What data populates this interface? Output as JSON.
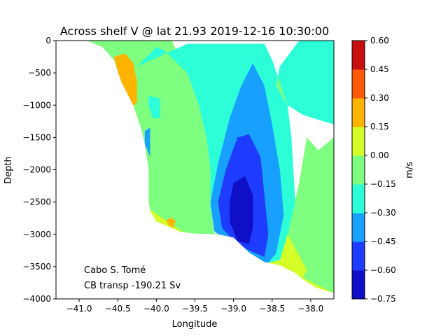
{
  "chart_data": {
    "type": "contourf",
    "title": "Across shelf V @ lat 21.93 2019-12-16 10:30:00",
    "xlabel": "Longitude",
    "ylabel": "Depth",
    "xlim": [
      -41.3,
      -37.7
    ],
    "ylim": [
      -4000,
      0
    ],
    "xticks": [
      -41.0,
      -40.5,
      -40.0,
      -39.5,
      -39.0,
      -38.5,
      -38.0
    ],
    "xtick_labels": [
      "−41.0",
      "−40.5",
      "−40.0",
      "−39.5",
      "−39.0",
      "−38.5",
      "−38.0"
    ],
    "yticks": [
      0,
      -500,
      -1000,
      -1500,
      -2000,
      -2500,
      -3000,
      -3500,
      -4000
    ],
    "ytick_labels": [
      "0",
      "−500",
      "−1000",
      "−1500",
      "−2000",
      "−2500",
      "−3000",
      "−3500",
      "−4000"
    ],
    "colorbar": {
      "label": "m/s",
      "levels": [
        -0.75,
        -0.6,
        -0.45,
        -0.3,
        -0.15,
        0.0,
        0.15,
        0.3,
        0.45,
        0.6
      ],
      "tick_labels": [
        "−0.75",
        "−0.60",
        "−0.45",
        "−0.30",
        "−0.15",
        "0.00",
        "0.15",
        "0.30",
        "0.45",
        "0.60"
      ],
      "colors": [
        "#0f0fc8",
        "#1e3cff",
        "#18a0ff",
        "#2cffd8",
        "#7fff7f",
        "#d4ff28",
        "#ffb400",
        "#ff5a0a",
        "#c80f0f"
      ]
    },
    "annotations": [
      "Cabo S. Tomé",
      "CB transp -190.21 Sv"
    ],
    "regions": [
      {
        "level": "0.00 to 0.15",
        "points": [
          [
            -38.8,
            -3300
          ],
          [
            -38.6,
            -3440
          ],
          [
            -38.4,
            -3500
          ],
          [
            -38.1,
            -3700
          ],
          [
            -37.9,
            -3850
          ],
          [
            -37.7,
            -3910
          ],
          [
            -37.7,
            -1500
          ],
          [
            -37.9,
            -1700
          ],
          [
            -38.05,
            -1500
          ],
          [
            -38.15,
            -2200
          ],
          [
            -38.3,
            -3000
          ],
          [
            -38.5,
            -3300
          ]
        ]
      },
      {
        "level": "0.00 to 0.15",
        "points": [
          [
            -40.1,
            -2200
          ],
          [
            -40.0,
            -1850
          ],
          [
            -39.85,
            -1700
          ],
          [
            -39.7,
            -1900
          ],
          [
            -39.6,
            -2250
          ],
          [
            -39.55,
            -2700
          ],
          [
            -39.45,
            -3000
          ],
          [
            -39.6,
            -3010
          ],
          [
            -39.75,
            -2930
          ],
          [
            -40.0,
            -2800
          ],
          [
            -40.1,
            -2600
          ]
        ]
      },
      {
        "level": "0.00 to 0.15",
        "points": [
          [
            -40.4,
            -200
          ],
          [
            -40.25,
            -300
          ],
          [
            -40.1,
            -500
          ],
          [
            -40.2,
            -700
          ],
          [
            -40.3,
            -600
          ]
        ]
      },
      {
        "level": "-0.15 to 0.00",
        "points": [
          [
            -41.0,
            0
          ],
          [
            -39.8,
            0
          ],
          [
            -39.6,
            -500
          ],
          [
            -39.45,
            -1000
          ],
          [
            -39.35,
            -1500
          ],
          [
            -39.3,
            -2000
          ],
          [
            -39.3,
            -2600
          ],
          [
            -39.25,
            -2980
          ],
          [
            -39.1,
            -3020
          ],
          [
            -38.8,
            -3320
          ],
          [
            -38.45,
            -3460
          ],
          [
            -38.1,
            -3680
          ],
          [
            -38.05,
            -3550
          ],
          [
            -38.3,
            -3000
          ],
          [
            -38.15,
            -2200
          ],
          [
            -38.05,
            -1500
          ],
          [
            -37.9,
            -1700
          ],
          [
            -37.7,
            -1500
          ],
          [
            -37.7,
            -1300
          ],
          [
            -38.1,
            -1150
          ],
          [
            -38.3,
            -1000
          ],
          [
            -38.45,
            -700
          ],
          [
            -38.4,
            -400
          ],
          [
            -38.15,
            0
          ],
          [
            -37.7,
            0
          ],
          [
            -37.7,
            -3910
          ],
          [
            -38.9,
            -3200
          ],
          [
            -39.6,
            -3010
          ],
          [
            -40.1,
            -2600
          ],
          [
            -40.2,
            -1800
          ],
          [
            -40.3,
            -1300
          ],
          [
            -40.6,
            -300
          ],
          [
            -40.85,
            -80
          ]
        ]
      },
      {
        "level": "-0.30 to -0.15",
        "points": [
          [
            -40.25,
            -400
          ],
          [
            -40.0,
            -100
          ],
          [
            -39.9,
            -150
          ],
          [
            -39.6,
            -500
          ],
          [
            -39.45,
            -1000
          ],
          [
            -39.35,
            -1500
          ],
          [
            -39.3,
            -2000
          ],
          [
            -39.3,
            -2600
          ],
          [
            -39.25,
            -2950
          ],
          [
            -39.1,
            -3020
          ],
          [
            -38.8,
            -3320
          ],
          [
            -38.55,
            -3440
          ],
          [
            -38.4,
            -3400
          ],
          [
            -38.3,
            -3000
          ],
          [
            -38.2,
            -2500
          ],
          [
            -38.25,
            -1500
          ],
          [
            -38.3,
            -1000
          ],
          [
            -38.45,
            -700
          ],
          [
            -38.4,
            -400
          ],
          [
            -38.15,
            0
          ],
          [
            -37.7,
            0
          ],
          [
            -37.7,
            -1300
          ],
          [
            -38.1,
            -1150
          ],
          [
            -38.3,
            -1000
          ],
          [
            -38.5,
            -300
          ],
          [
            -38.6,
            -50
          ],
          [
            -39.6,
            -50
          ]
        ]
      },
      {
        "level": "-0.45 to -0.30",
        "points": [
          [
            -39.2,
            -1900
          ],
          [
            -39.05,
            -1200
          ],
          [
            -38.9,
            -700
          ],
          [
            -38.75,
            -350
          ],
          [
            -38.6,
            -700
          ],
          [
            -38.5,
            -1300
          ],
          [
            -38.4,
            -2000
          ],
          [
            -38.35,
            -2700
          ],
          [
            -38.45,
            -3300
          ],
          [
            -38.55,
            -3440
          ],
          [
            -38.75,
            -3420
          ],
          [
            -38.95,
            -3300
          ],
          [
            -39.1,
            -3100
          ],
          [
            -39.25,
            -2950
          ],
          [
            -39.3,
            -2500
          ]
        ]
      },
      {
        "level": "-0.60 to -0.45",
        "points": [
          [
            -39.1,
            -2000
          ],
          [
            -38.95,
            -1500
          ],
          [
            -38.8,
            -1450
          ],
          [
            -38.65,
            -1800
          ],
          [
            -38.6,
            -2400
          ],
          [
            -38.55,
            -3000
          ],
          [
            -38.6,
            -3350
          ],
          [
            -38.8,
            -3250
          ],
          [
            -39.0,
            -3100
          ],
          [
            -39.15,
            -2900
          ],
          [
            -39.2,
            -2500
          ]
        ]
      },
      {
        "level": "-0.75 to -0.60",
        "points": [
          [
            -39.0,
            -2200
          ],
          [
            -38.85,
            -2100
          ],
          [
            -38.75,
            -2400
          ],
          [
            -38.75,
            -2900
          ],
          [
            -38.8,
            -3150
          ],
          [
            -38.95,
            -3100
          ],
          [
            -39.05,
            -2800
          ],
          [
            -39.05,
            -2500
          ]
        ]
      },
      {
        "level": "-0.30 to -0.15",
        "points": [
          [
            -40.1,
            -850
          ],
          [
            -39.95,
            -900
          ],
          [
            -39.95,
            -1200
          ],
          [
            -40.05,
            -1200
          ],
          [
            -40.1,
            -1000
          ]
        ]
      },
      {
        "level": "-0.45 to -0.30",
        "points": [
          [
            -40.15,
            -1400
          ],
          [
            -40.08,
            -1350
          ],
          [
            -40.08,
            -1800
          ],
          [
            -40.15,
            -1600
          ]
        ]
      },
      {
        "level": "0.15 to 0.30",
        "points": [
          [
            -40.55,
            -250
          ],
          [
            -40.4,
            -200
          ],
          [
            -40.3,
            -350
          ],
          [
            -40.25,
            -650
          ],
          [
            -40.25,
            -950
          ],
          [
            -40.35,
            -1100
          ],
          [
            -40.45,
            -700
          ]
        ]
      },
      {
        "level": "0.15 to 0.30",
        "points": [
          [
            -39.87,
            -2780
          ],
          [
            -39.8,
            -2740
          ],
          [
            -39.75,
            -2800
          ],
          [
            -39.78,
            -2900
          ],
          [
            -39.85,
            -2850
          ]
        ]
      }
    ],
    "bathymetry": [
      [
        -41.3,
        0
      ],
      [
        -40.9,
        0
      ],
      [
        -40.7,
        -100
      ],
      [
        -40.55,
        -300
      ],
      [
        -40.45,
        -650
      ],
      [
        -40.3,
        -1000
      ],
      [
        -40.2,
        -1350
      ],
      [
        -40.15,
        -1600
      ],
      [
        -40.1,
        -2000
      ],
      [
        -40.1,
        -2500
      ],
      [
        -40.05,
        -2800
      ],
      [
        -39.9,
        -2900
      ],
      [
        -39.7,
        -2960
      ],
      [
        -39.5,
        -2990
      ],
      [
        -39.2,
        -3000
      ],
      [
        -39.0,
        -3050
      ],
      [
        -38.8,
        -3280
      ],
      [
        -38.6,
        -3430
      ],
      [
        -38.4,
        -3480
      ],
      [
        -38.2,
        -3600
      ],
      [
        -38.0,
        -3800
      ],
      [
        -37.7,
        -3910
      ],
      [
        -37.7,
        -4000
      ],
      [
        -41.3,
        -4000
      ]
    ]
  }
}
